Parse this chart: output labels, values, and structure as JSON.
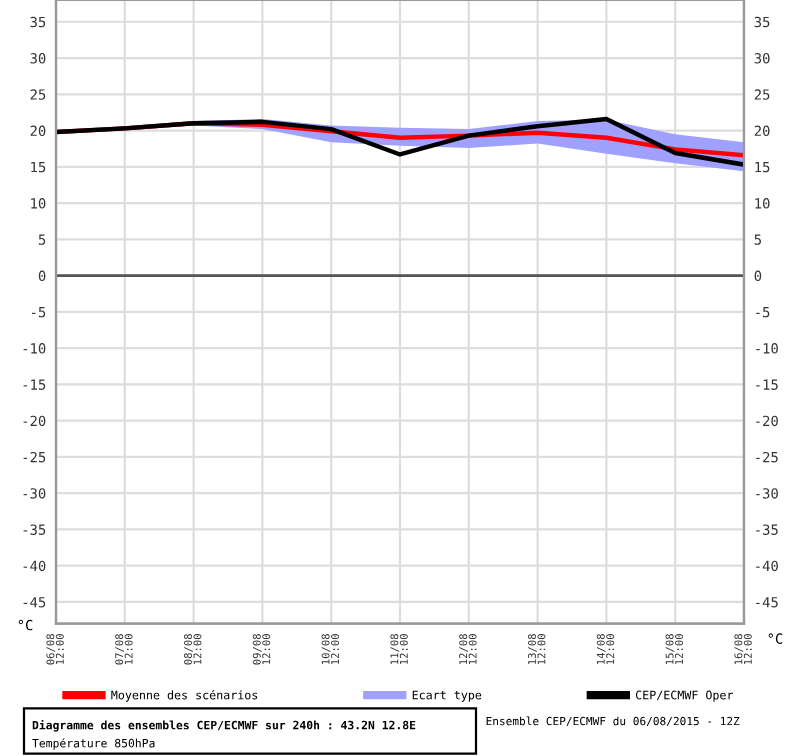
{
  "chart_data": {
    "type": "line",
    "categories": [
      "06/08\n12:00",
      "07/08\n12:00",
      "08/08\n12:00",
      "09/08\n12:00",
      "10/08\n12:00",
      "11/08\n12:00",
      "12/08\n12:00",
      "13/08\n12:00",
      "14/08\n12:00",
      "15/08\n12:00",
      "16/08\n12:00"
    ],
    "series": [
      {
        "name": "Moyenne des scénarios",
        "color": "#ff0000",
        "values": [
          19.8,
          20.3,
          21.0,
          20.8,
          19.9,
          19.0,
          19.3,
          19.7,
          19.0,
          17.4,
          16.6
        ]
      },
      {
        "name": "Ecart type",
        "type": "line",
        "color": "#a0a0ff",
        "values": [
          null,
          null,
          null,
          null,
          null,
          null,
          null,
          null,
          null,
          null,
          null
        ],
        "lower": [
          19.6,
          20.0,
          20.7,
          20.2,
          18.4,
          17.9,
          17.6,
          18.2,
          16.8,
          15.5,
          14.4
        ],
        "upper": [
          20.0,
          20.6,
          21.3,
          21.6,
          20.7,
          20.4,
          20.2,
          21.3,
          21.5,
          19.5,
          18.4
        ]
      },
      {
        "name": "CEP/ECMWF Oper",
        "color": "#000000",
        "values": [
          19.8,
          20.3,
          21.0,
          21.2,
          20.2,
          16.7,
          19.3,
          20.6,
          21.6,
          16.9,
          15.3
        ]
      }
    ],
    "ylim": [
      -48,
      38
    ],
    "yticks": [
      -45,
      -40,
      -35,
      -30,
      -25,
      -20,
      -15,
      -10,
      -5,
      0,
      5,
      10,
      15,
      20,
      25,
      30,
      35
    ],
    "y2lim": [
      -48,
      38
    ],
    "y2ticks": [
      -45,
      -40,
      -35,
      -30,
      -25,
      -20,
      -15,
      -10,
      -5,
      0,
      5,
      10,
      15,
      20,
      25,
      30,
      35
    ],
    "ylabel": "°C",
    "y2label": "°C",
    "ref_lines": [
      {
        "axis": "y",
        "value": 0,
        "color": "#555555"
      }
    ],
    "grid": true,
    "legend": "bottom",
    "annotations": [
      "Diagramme des ensembles CEP/ECMWF sur 240h : 43.2N 12.8E",
      "Température 850hPa",
      "Ensemble CEP/ECMWF du 06/08/2015 - 12Z"
    ]
  }
}
